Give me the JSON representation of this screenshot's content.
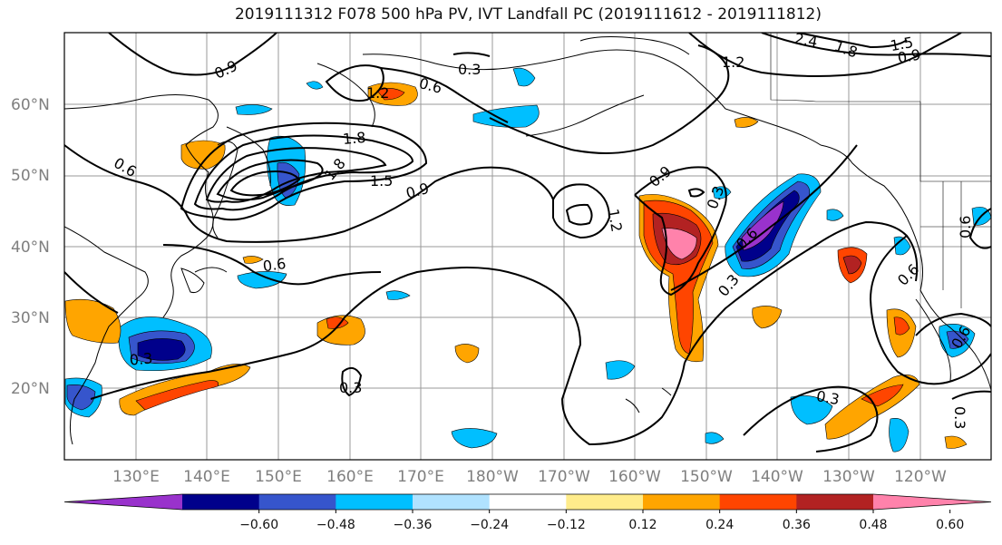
{
  "title": "2019111312 F078 500 hPa PV, IVT Landfall PC (2019111612 - 2019111812)",
  "map": {
    "lat_labels": [
      "60°N",
      "50°N",
      "40°N",
      "30°N",
      "20°N"
    ],
    "lon_labels": [
      "130°E",
      "140°E",
      "150°E",
      "160°E",
      "170°E",
      "180°W",
      "170°W",
      "160°W",
      "150°W",
      "140°W",
      "130°W",
      "120°W"
    ],
    "contour_labels": [
      "0.9",
      "0.3",
      "0.6",
      "1.8",
      "1.2",
      "0.6",
      "1.8",
      "1.5",
      "0.9",
      "0.6",
      "0.9",
      "1.2",
      "0.6",
      "0.3",
      "0.3",
      "0.3",
      "0.3",
      "1.2",
      "0.9",
      "1.5",
      "2.4",
      "1.8",
      "0.6",
      "0.6",
      "0.3",
      "0.6",
      "0.3"
    ]
  },
  "colorbar": {
    "colors": [
      "#9932cc",
      "#00008b",
      "#3655cc",
      "#00bfff",
      "#b0e2ff",
      "#ffffff",
      "#ffec8b",
      "#ffa500",
      "#ff4500",
      "#b22222",
      "#ff82ab"
    ],
    "tick_labels": [
      "−0.60",
      "−0.48",
      "−0.36",
      "−0.24",
      "−0.12",
      "0.12",
      "0.24",
      "0.36",
      "0.48",
      "0.60"
    ]
  }
}
